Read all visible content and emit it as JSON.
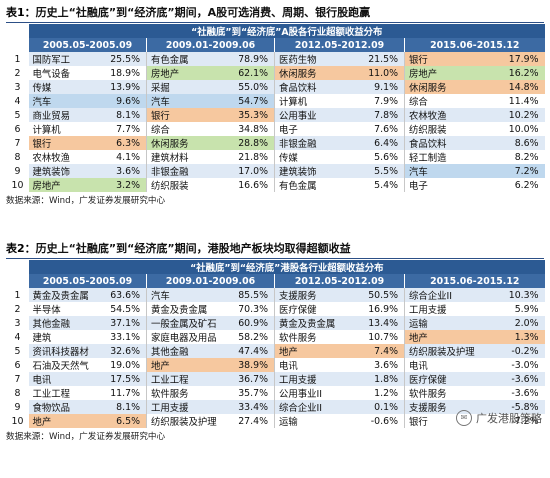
{
  "table1": {
    "label": "表1：",
    "title": "历史上“社融底”到“经济底”期间，A股可选消费、周期、银行股跑赢",
    "super_header": "“社融底”到“经济底”A股各行业超额收益分布",
    "periods": [
      "2005.05-2005.09",
      "2009.01-2009.06",
      "2012.05-2012.09",
      "2015.06-2015.12"
    ],
    "rows": [
      [
        [
          "国防军工",
          "25.5%",
          ""
        ],
        [
          "有色金属",
          "78.9%",
          ""
        ],
        [
          "医药生物",
          "21.5%",
          ""
        ],
        [
          "银行",
          "17.9%",
          "orange"
        ]
      ],
      [
        [
          "电气设备",
          "18.9%",
          ""
        ],
        [
          "房地产",
          "62.1%",
          "green"
        ],
        [
          "休闲服务",
          "11.0%",
          "orange"
        ],
        [
          "房地产",
          "16.2%",
          "green"
        ]
      ],
      [
        [
          "传媒",
          "13.9%",
          ""
        ],
        [
          "采掘",
          "55.0%",
          ""
        ],
        [
          "食品饮料",
          "9.1%",
          ""
        ],
        [
          "休闲服务",
          "14.8%",
          "orange"
        ]
      ],
      [
        [
          "汽车",
          "9.6%",
          "blue"
        ],
        [
          "汽车",
          "54.7%",
          "blue"
        ],
        [
          "计算机",
          "7.9%",
          ""
        ],
        [
          "综合",
          "11.4%",
          ""
        ]
      ],
      [
        [
          "商业贸易",
          "8.1%",
          ""
        ],
        [
          "银行",
          "35.3%",
          "orange"
        ],
        [
          "公用事业",
          "7.8%",
          ""
        ],
        [
          "农林牧渔",
          "10.2%",
          ""
        ]
      ],
      [
        [
          "计算机",
          "7.7%",
          ""
        ],
        [
          "综合",
          "34.8%",
          ""
        ],
        [
          "电子",
          "7.6%",
          ""
        ],
        [
          "纺织服装",
          "10.0%",
          ""
        ]
      ],
      [
        [
          "银行",
          "6.3%",
          "orange"
        ],
        [
          "休闲服务",
          "28.8%",
          "green"
        ],
        [
          "非银金融",
          "6.4%",
          ""
        ],
        [
          "食品饮料",
          "8.6%",
          ""
        ]
      ],
      [
        [
          "农林牧渔",
          "4.1%",
          ""
        ],
        [
          "建筑材料",
          "21.8%",
          ""
        ],
        [
          "传媒",
          "5.6%",
          ""
        ],
        [
          "轻工制造",
          "8.2%",
          ""
        ]
      ],
      [
        [
          "建筑装饰",
          "3.6%",
          ""
        ],
        [
          "非银金融",
          "17.0%",
          ""
        ],
        [
          "建筑装饰",
          "5.5%",
          ""
        ],
        [
          "汽车",
          "7.2%",
          "blue"
        ]
      ],
      [
        [
          "房地产",
          "3.2%",
          "green"
        ],
        [
          "纺织服装",
          "16.6%",
          ""
        ],
        [
          "有色金属",
          "5.4%",
          ""
        ],
        [
          "电子",
          "6.2%",
          ""
        ]
      ]
    ],
    "source": "数据来源：Wind，广发证券发展研究中心"
  },
  "table2": {
    "label": "表2：",
    "title": "历史上“社融底”到“经济底”期间，港股地产板块均取得超额收益",
    "super_header": "“社融底”到“经济底”港股各行业超额收益分布",
    "periods": [
      "2005.05-2005.09",
      "2009.01-2009.06",
      "2012.05-2012.09",
      "2015.06-2015.12"
    ],
    "rows": [
      [
        [
          "黄金及贵金属",
          "63.6%",
          ""
        ],
        [
          "汽车",
          "85.5%",
          ""
        ],
        [
          "支援服务",
          "50.5%",
          ""
        ],
        [
          "综合企业II",
          "10.3%",
          ""
        ]
      ],
      [
        [
          "半导体",
          "54.5%",
          ""
        ],
        [
          "黄金及贵金属",
          "70.3%",
          ""
        ],
        [
          "医疗保健",
          "16.9%",
          ""
        ],
        [
          "工用支援",
          "5.9%",
          ""
        ]
      ],
      [
        [
          "其他金融",
          "37.1%",
          ""
        ],
        [
          "一般金属及矿石",
          "60.9%",
          ""
        ],
        [
          "黄金及贵金属",
          "13.4%",
          ""
        ],
        [
          "运输",
          "2.0%",
          ""
        ]
      ],
      [
        [
          "建筑",
          "33.1%",
          ""
        ],
        [
          "家庭电器及用品",
          "58.2%",
          ""
        ],
        [
          "软件服务",
          "10.7%",
          ""
        ],
        [
          "地产",
          "1.3%",
          "orange"
        ]
      ],
      [
        [
          "资讯科技器材",
          "32.6%",
          ""
        ],
        [
          "其他金融",
          "47.4%",
          ""
        ],
        [
          "地产",
          "7.4%",
          "orange"
        ],
        [
          "纺织服装及护理",
          "-0.2%",
          ""
        ]
      ],
      [
        [
          "石油及天然气",
          "19.0%",
          ""
        ],
        [
          "地产",
          "38.9%",
          "orange"
        ],
        [
          "电讯",
          "3.6%",
          ""
        ],
        [
          "电讯",
          "-3.0%",
          ""
        ]
      ],
      [
        [
          "电讯",
          "17.5%",
          ""
        ],
        [
          "工业工程",
          "36.7%",
          ""
        ],
        [
          "工用支援",
          "1.8%",
          ""
        ],
        [
          "医疗保健",
          "-3.6%",
          ""
        ]
      ],
      [
        [
          "工业工程",
          "11.7%",
          ""
        ],
        [
          "软件服务",
          "35.7%",
          ""
        ],
        [
          "公用事业II",
          "1.2%",
          ""
        ],
        [
          "软件服务",
          "-3.6%",
          ""
        ]
      ],
      [
        [
          "食物饮品",
          "8.1%",
          ""
        ],
        [
          "工用支援",
          "33.4%",
          ""
        ],
        [
          "综合企业II",
          "0.1%",
          ""
        ],
        [
          "支援服务",
          "-5.8%",
          ""
        ]
      ],
      [
        [
          "地产",
          "6.5%",
          "orange"
        ],
        [
          "纺织服装及护理",
          "27.4%",
          ""
        ],
        [
          "运输",
          "-0.6%",
          ""
        ],
        [
          "银行",
          "-7.2%",
          ""
        ]
      ]
    ],
    "source": "数据来源：Wind，广发证券发展研究中心"
  },
  "watermark": "广发港股策略",
  "colors": {
    "header": "#2c5a93",
    "orange": "#f6c89f",
    "green": "#c8e3ad",
    "blue": "#bfd8ee",
    "stripe": "#dfe9f5"
  }
}
